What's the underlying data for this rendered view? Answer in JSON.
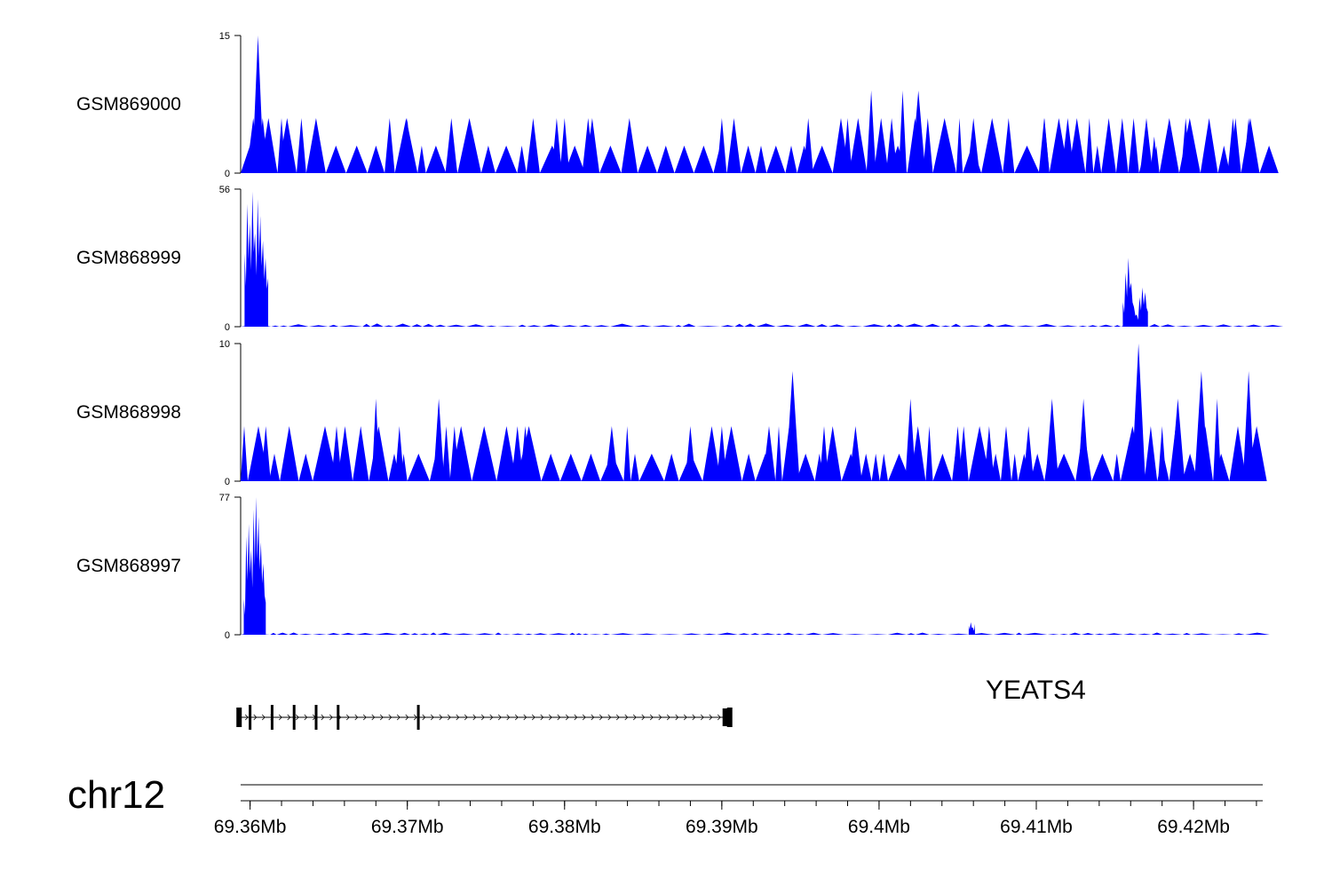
{
  "chart_data": {
    "type": "area",
    "chromosome": "chr12",
    "x_range": [
      69.3594,
      69.4244
    ],
    "x_unit": "Mb",
    "fill_color": "#0000ff",
    "genome_axis": {
      "ticks": [
        69.36,
        69.37,
        69.38,
        69.39,
        69.4,
        69.41,
        69.42
      ],
      "tick_labels": [
        "69.36Mb",
        "69.37Mb",
        "69.38Mb",
        "69.39Mb",
        "69.4Mb",
        "69.41Mb",
        "69.42Mb"
      ]
    },
    "tracks": [
      {
        "name": "GSM869000",
        "ylim": [
          0,
          15
        ],
        "y_tick_labels": [
          "0",
          "15"
        ],
        "style": "sparse",
        "peaks": [
          [
            69.3605,
            15
          ],
          [
            69.3602,
            6
          ],
          [
            69.3608,
            6
          ],
          [
            69.362,
            6
          ],
          [
            69.364,
            4
          ],
          [
            69.37,
            6
          ],
          [
            69.3728,
            6
          ],
          [
            69.3795,
            6
          ],
          [
            69.38,
            6
          ],
          [
            69.3815,
            6
          ],
          [
            69.39,
            6
          ],
          [
            69.3955,
            6
          ],
          [
            69.398,
            6
          ],
          [
            69.3995,
            9
          ],
          [
            69.4015,
            9
          ],
          [
            69.4008,
            6
          ],
          [
            69.4025,
            9
          ],
          [
            69.406,
            6
          ],
          [
            69.4105,
            6
          ],
          [
            69.412,
            6
          ],
          [
            69.417,
            6
          ],
          [
            69.4195,
            6
          ],
          [
            69.4225,
            6
          ],
          [
            69.4235,
            6
          ],
          [
            69.4175,
            4
          ],
          [
            69.407,
            4
          ]
        ],
        "baseline_spikes": 3
      },
      {
        "name": "GSM868999",
        "ylim": [
          0,
          56
        ],
        "y_tick_labels": [
          "0",
          "56"
        ],
        "style": "dense",
        "regions": [
          {
            "center": 69.3604,
            "width": 0.0015,
            "heights": [
              30,
              50,
              42,
              55,
              38,
              52,
              45,
              35,
              28,
              20
            ]
          },
          {
            "center": 69.4163,
            "width": 0.0016,
            "heights": [
              10,
              22,
              28,
              18,
              8,
              5,
              12,
              16,
              14,
              6
            ]
          }
        ],
        "baseline_spikes": 1
      },
      {
        "name": "GSM868998",
        "ylim": [
          0,
          10
        ],
        "y_tick_labels": [
          "0",
          "10"
        ],
        "style": "sparse",
        "peaks": [
          [
            69.361,
            4
          ],
          [
            69.3655,
            4
          ],
          [
            69.368,
            6
          ],
          [
            69.372,
            6
          ],
          [
            69.373,
            4
          ],
          [
            69.3775,
            4
          ],
          [
            69.383,
            4
          ],
          [
            69.388,
            4
          ],
          [
            69.39,
            4
          ],
          [
            69.393,
            4
          ],
          [
            69.3945,
            8
          ],
          [
            69.402,
            6
          ],
          [
            69.405,
            4
          ],
          [
            69.407,
            4
          ],
          [
            69.411,
            6
          ],
          [
            69.413,
            6
          ],
          [
            69.4165,
            10
          ],
          [
            69.419,
            6
          ],
          [
            69.4205,
            8
          ],
          [
            69.4215,
            6
          ],
          [
            69.4235,
            8
          ],
          [
            69.377,
            4
          ],
          [
            69.3695,
            4
          ],
          [
            69.4095,
            4
          ],
          [
            69.418,
            4
          ],
          [
            69.3985,
            4
          ],
          [
            69.3965,
            4
          ]
        ],
        "baseline_spikes": 2
      },
      {
        "name": "GSM868997",
        "ylim": [
          0,
          77
        ],
        "y_tick_labels": [
          "0",
          "77"
        ],
        "style": "dense",
        "regions": [
          {
            "center": 69.3603,
            "width": 0.0014,
            "heights": [
              20,
              55,
              62,
              48,
              70,
              77,
              66,
              52,
              40,
              18
            ]
          },
          {
            "center": 69.4059,
            "width": 0.0004,
            "heights": [
              5,
              7,
              4,
              6
            ]
          }
        ],
        "baseline_spikes": 1
      }
    ],
    "gene": {
      "name": "YEATS4",
      "start": 69.3593,
      "end": 69.3905,
      "strand": "+",
      "exons": [
        69.3593,
        69.36,
        69.3614,
        69.3628,
        69.3642,
        69.3656,
        69.3707,
        69.3905
      ]
    }
  }
}
